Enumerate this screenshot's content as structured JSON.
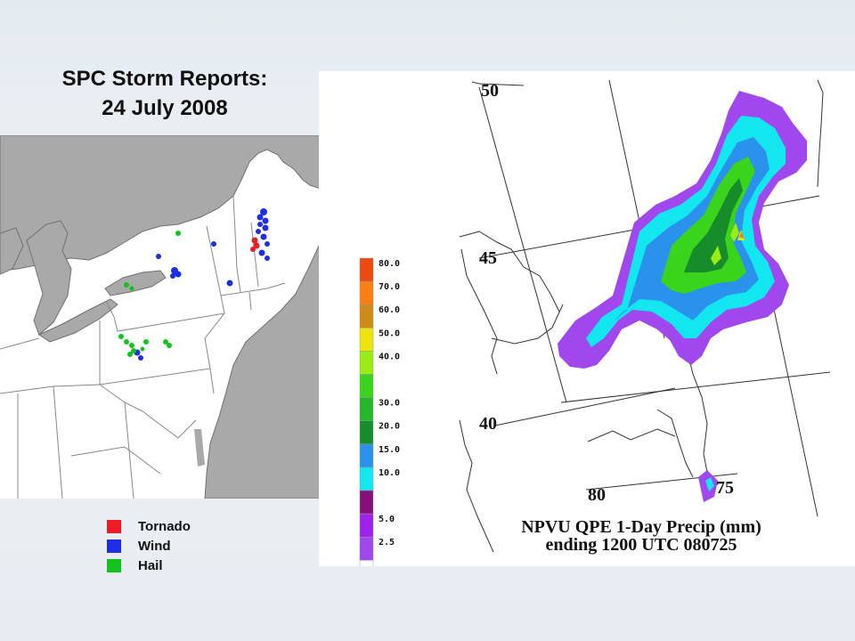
{
  "title": {
    "line1": "SPC Storm Reports:",
    "line2": "24 July 2008"
  },
  "legend": [
    {
      "label": "Tornado",
      "color": "#ee1c25"
    },
    {
      "label": "Wind",
      "color": "#1e2de6"
    },
    {
      "label": "Hail",
      "color": "#13c31d"
    }
  ],
  "precip_map": {
    "title_line1": "NPVU QPE 1-Day Precip (mm)",
    "title_line2": "ending 1200 UTC 080725",
    "lat_labels": [
      "50",
      "45",
      "40"
    ],
    "lon_labels": [
      "80",
      "75"
    ],
    "colorbar": [
      {
        "label": "80.0",
        "color": "#ee4a10"
      },
      {
        "label": "70.0",
        "color": "#ff7e10"
      },
      {
        "label": "60.0",
        "color": "#d08a18"
      },
      {
        "label": "50.0",
        "color": "#ece40a"
      },
      {
        "label": "40.0",
        "color": "#9bec14"
      },
      {
        "label": "",
        "color": "#3bd41c"
      },
      {
        "label": "30.0",
        "color": "#22b82a"
      },
      {
        "label": "20.0",
        "color": "#168c2a"
      },
      {
        "label": "15.0",
        "color": "#2a92ec"
      },
      {
        "label": "10.0",
        "color": "#12e6ee"
      },
      {
        "label": "",
        "color": "#86107a"
      },
      {
        "label": "5.0",
        "color": "#a020ee"
      },
      {
        "label": "2.5",
        "color": "#a048ee"
      },
      {
        "label": "",
        "color": "#ffffff"
      }
    ]
  }
}
